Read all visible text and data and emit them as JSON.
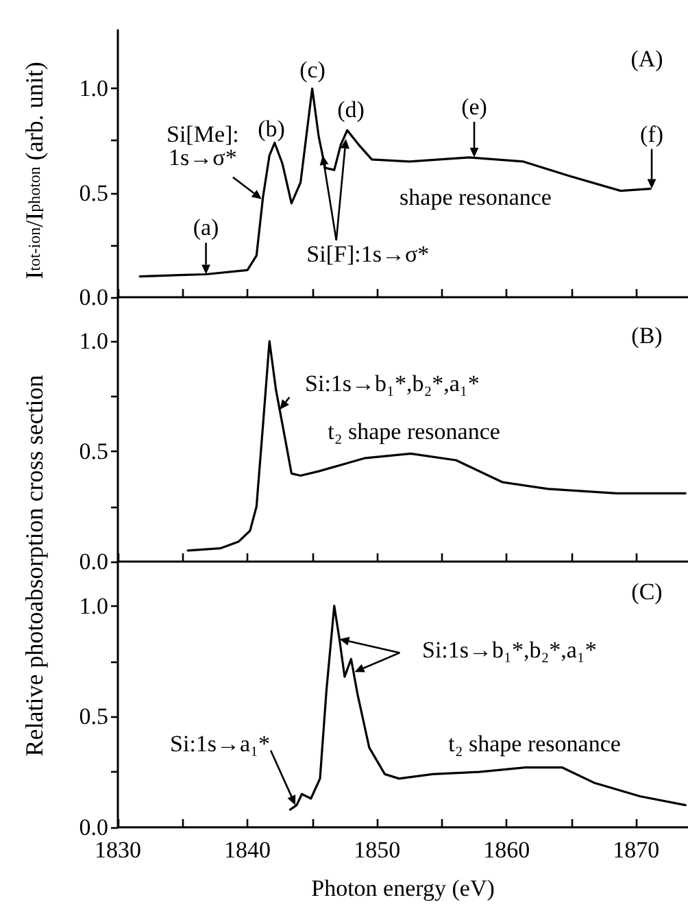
{
  "chart_data": [
    {
      "type": "line",
      "ylabel": "I$_{tot-ion}$/I$_{photon}$ (arb. unit)",
      "xlim": [
        1830,
        1874
      ],
      "ylim": [
        0,
        1.28
      ],
      "tick_labels": "y",
      "line_style": "solid",
      "marker": "none",
      "xticks": [
        {
          "value": 1830,
          "label": null
        },
        {
          "value": 1835,
          "label": null
        },
        {
          "value": 1840,
          "label": null
        },
        {
          "value": 1845,
          "label": null
        },
        {
          "value": 1850,
          "label": null
        },
        {
          "value": 1855,
          "label": null
        },
        {
          "value": 1860,
          "label": null
        },
        {
          "value": 1865,
          "label": null
        },
        {
          "value": 1870,
          "label": null
        }
      ],
      "yticks": [
        {
          "value": 0,
          "label": "0.0"
        },
        {
          "value": 0.25,
          "label": null
        },
        {
          "value": 0.5,
          "label": "0.5"
        },
        {
          "value": 0.75,
          "label": null
        },
        {
          "value": 1,
          "label": "1.0"
        }
      ],
      "series": [
        {
          "color": "#000000",
          "x": [
            1831.7,
            1836.8,
            1840.0,
            1840.7,
            1841.2,
            1841.7,
            1842.1,
            1842.7,
            1843.4,
            1844.1,
            1845.0,
            1845.5,
            1846.0,
            1846.7,
            1847.2,
            1847.7,
            1848.6,
            1849.6,
            1852.5,
            1857.1,
            1861.3,
            1864.9,
            1868.8,
            1871.1
          ],
          "values": [
            0.1,
            0.11,
            0.13,
            0.2,
            0.48,
            0.68,
            0.74,
            0.64,
            0.45,
            0.55,
            1.0,
            0.77,
            0.62,
            0.61,
            0.73,
            0.8,
            0.73,
            0.66,
            0.65,
            0.67,
            0.65,
            0.58,
            0.51,
            0.52
          ]
        }
      ],
      "annotations": [
        "(A)",
        {
          "text": "(a)",
          "x": 1836.8,
          "y": 0.11
        },
        "(b)",
        "(c)",
        "(d)",
        {
          "text": "(e)",
          "x": 1857.5,
          "y": 0.67
        },
        {
          "text": "(f)",
          "x": 1871.2,
          "y": 0.52
        },
        {
          "text": "Si[Me]:\n1s→σ*",
          "x": 1841.1,
          "y": 0.47
        },
        {
          "text": "Si[F]:1s→σ*",
          "x": 1845.8,
          "y": 0.68
        },
        "shape resonance"
      ]
    },
    {
      "type": "line",
      "ylabel": "Relative photoabsorption cross section",
      "xlim": [
        1830,
        1874
      ],
      "ylim": [
        0,
        1.2
      ],
      "tick_labels": "y",
      "line_style": "solid",
      "marker": "none",
      "xticks": [
        {
          "value": 1830,
          "label": null
        },
        {
          "value": 1835,
          "label": null
        },
        {
          "value": 1840,
          "label": null
        },
        {
          "value": 1845,
          "label": null
        },
        {
          "value": 1850,
          "label": null
        },
        {
          "value": 1855,
          "label": null
        },
        {
          "value": 1860,
          "label": null
        },
        {
          "value": 1865,
          "label": null
        },
        {
          "value": 1870,
          "label": null
        }
      ],
      "yticks": [
        {
          "value": 0,
          "label": "0.0"
        },
        {
          "value": 0.25,
          "label": null
        },
        {
          "value": 0.5,
          "label": "0.5"
        },
        {
          "value": 0.75,
          "label": null
        },
        {
          "value": 1,
          "label": "1.0"
        }
      ],
      "series": [
        {
          "color": "#000000",
          "x": [
            1835.4,
            1837.9,
            1839.3,
            1840.2,
            1840.7,
            1841.2,
            1841.7,
            1842.2,
            1842.9,
            1843.4,
            1844.1,
            1845.5,
            1849.1,
            1852.6,
            1856.1,
            1859.7,
            1863.2,
            1868.5,
            1873.8
          ],
          "values": [
            0.05,
            0.06,
            0.09,
            0.14,
            0.25,
            0.62,
            1.0,
            0.78,
            0.56,
            0.4,
            0.39,
            0.41,
            0.47,
            0.49,
            0.46,
            0.36,
            0.33,
            0.31,
            0.31
          ]
        }
      ],
      "annotations": [
        "(B)",
        {
          "text": "Si:1s→b₁*,b₂*,a₁*",
          "x": 1842.5,
          "y": 0.69
        },
        "t₂ shape resonance"
      ]
    },
    {
      "type": "line",
      "xlabel": "Photon energy (eV)",
      "xlim": [
        1830,
        1874
      ],
      "ylim": [
        0,
        1.2
      ],
      "line_style": "solid",
      "marker": "none",
      "xticks": [
        1830,
        {
          "value": 1835,
          "label": null
        },
        1840,
        {
          "value": 1845,
          "label": null
        },
        1850,
        {
          "value": 1855,
          "label": null
        },
        1860,
        {
          "value": 1865,
          "label": null
        },
        1870
      ],
      "yticks": [
        {
          "value": 0,
          "label": "0.0"
        },
        {
          "value": 0.25,
          "label": null
        },
        {
          "value": 0.5,
          "label": "0.5"
        },
        {
          "value": 0.75,
          "label": null
        },
        {
          "value": 1,
          "label": "1.0"
        }
      ],
      "series": [
        {
          "color": "#000000",
          "x": [
            1843.3,
            1843.8,
            1844.2,
            1844.9,
            1845.6,
            1846.1,
            1846.7,
            1847.1,
            1847.5,
            1848.0,
            1848.5,
            1849.4,
            1850.6,
            1851.7,
            1854.3,
            1857.9,
            1861.4,
            1864.3,
            1866.8,
            1870.3,
            1873.8
          ],
          "values": [
            0.08,
            0.1,
            0.15,
            0.13,
            0.22,
            0.62,
            1.0,
            0.85,
            0.68,
            0.76,
            0.6,
            0.36,
            0.24,
            0.22,
            0.24,
            0.25,
            0.27,
            0.27,
            0.2,
            0.14,
            0.1
          ]
        }
      ],
      "annotations": [
        "(C)",
        {
          "text": "Si:1s→b₁*,b₂*,a₁*",
          "x": 1847.1,
          "y": 0.85
        },
        {
          "text": "Si:1s→a₁*",
          "x": 1843.7,
          "y": 0.1
        },
        "t₂ shape resonance"
      ]
    }
  ]
}
